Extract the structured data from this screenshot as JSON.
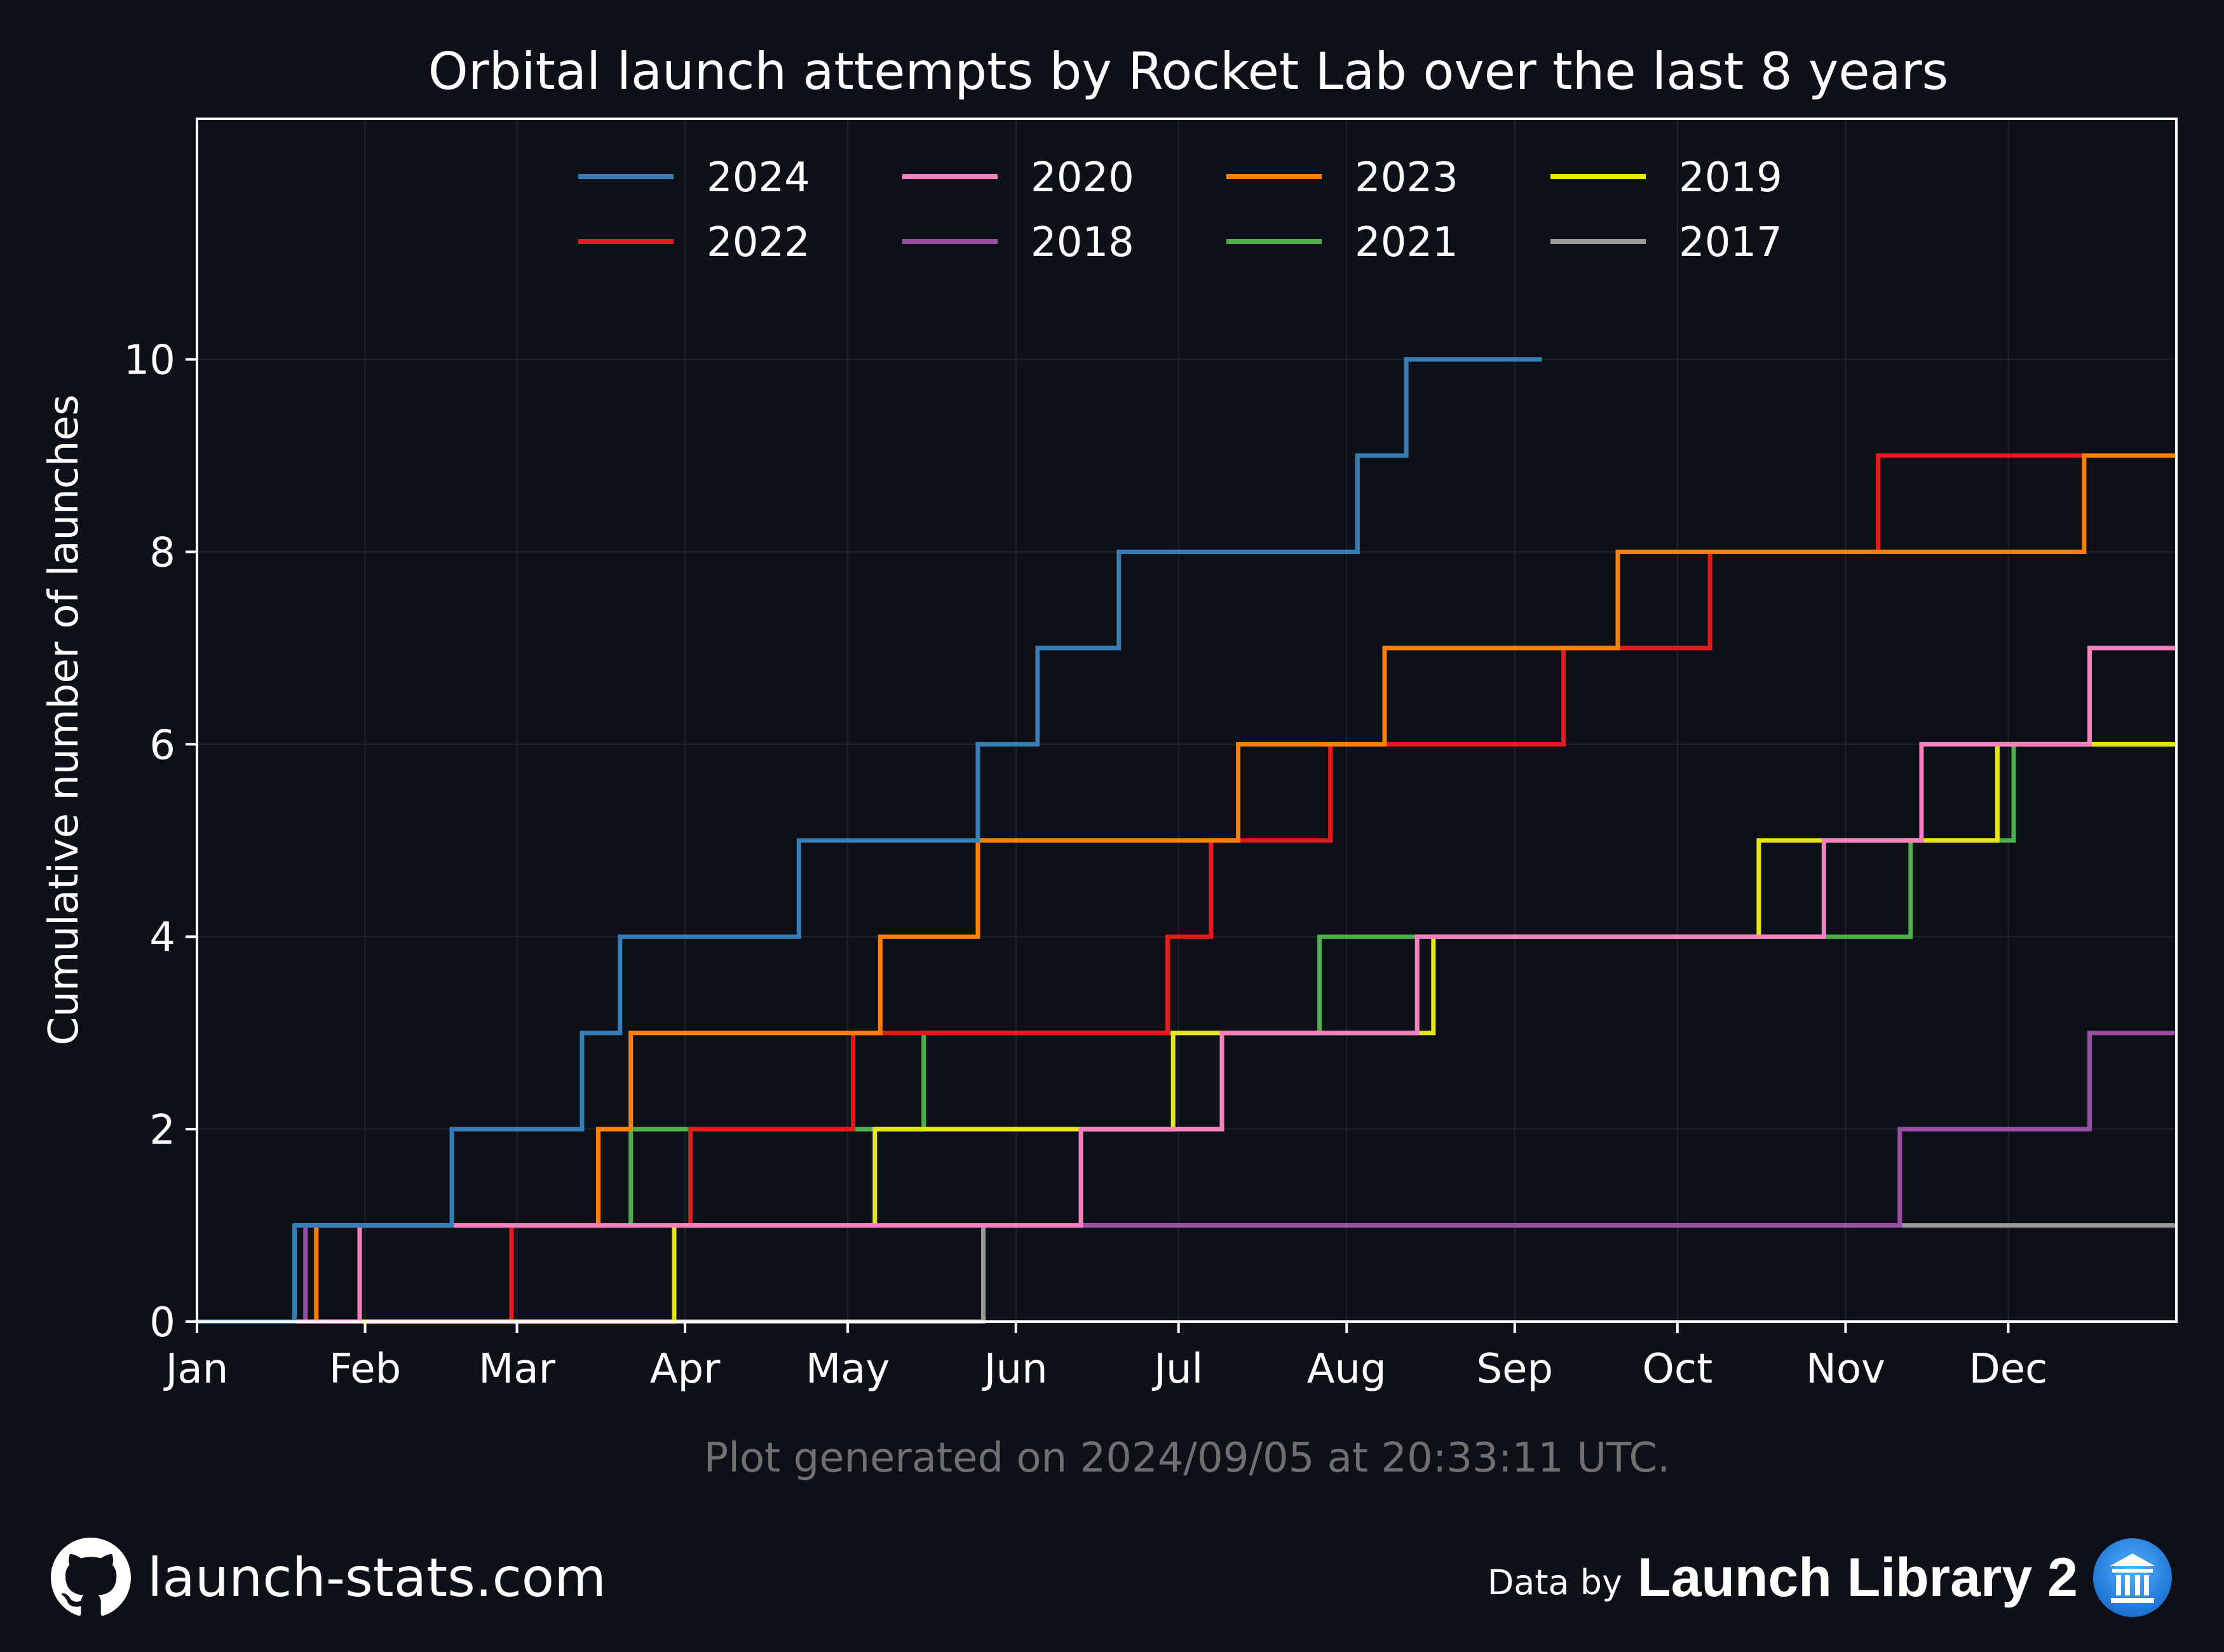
{
  "chart_data": {
    "type": "line",
    "step": true,
    "title": "Orbital launch attempts by Rocket Lab over the last 8 years",
    "ylabel": "Cumulative number of launches",
    "xlabel": "",
    "x_ticks": [
      "Jan",
      "Feb",
      "Mar",
      "Apr",
      "May",
      "Jun",
      "Jul",
      "Aug",
      "Sep",
      "Oct",
      "Nov",
      "Dec"
    ],
    "y_ticks": [
      "0",
      "2",
      "4",
      "6",
      "8",
      "10"
    ],
    "ylim": [
      0,
      12.5
    ],
    "xlim_day_of_year": [
      1,
      366
    ],
    "grid": true,
    "legend_position": "top-center",
    "note": "Plot generated on 2024/09/05 at 20:33:11 UTC.",
    "series": [
      {
        "name": "2024",
        "color": "#377eb8",
        "end_day": 249,
        "launch_days": [
          19,
          48,
          72,
          79,
          112,
          145,
          156,
          171,
          215,
          224
        ]
      },
      {
        "name": "2020",
        "color": "#f781bf",
        "end_day": 366,
        "launch_days": [
          31,
          164,
          190,
          226,
          301,
          319,
          350
        ]
      },
      {
        "name": "2023",
        "color": "#ff7f00",
        "end_day": 366,
        "launch_days": [
          23,
          75,
          81,
          127,
          145,
          193,
          220,
          263,
          349
        ]
      },
      {
        "name": "2019",
        "color": "#e5e515",
        "end_day": 366,
        "launch_days": [
          89,
          126,
          181,
          229,
          289,
          333
        ]
      },
      {
        "name": "2022",
        "color": "#e41a1c",
        "end_day": 366,
        "launch_days": [
          59,
          92,
          122,
          180,
          188,
          210,
          253,
          280,
          311
        ]
      },
      {
        "name": "2018",
        "color": "#984ea3",
        "end_day": 366,
        "launch_days": [
          21,
          315,
          350
        ]
      },
      {
        "name": "2021",
        "color": "#4daf4a",
        "end_day": 366,
        "launch_days": [
          19,
          81,
          135,
          208,
          317,
          336
        ]
      },
      {
        "name": "2017",
        "color": "#999999",
        "end_day": 366,
        "launch_days": [
          146
        ]
      }
    ]
  },
  "footer": {
    "site": "launch-stats.com",
    "data_by": "Data by",
    "source": "Launch Library 2",
    "github_icon": "github-icon",
    "source_icon": "library-icon"
  }
}
